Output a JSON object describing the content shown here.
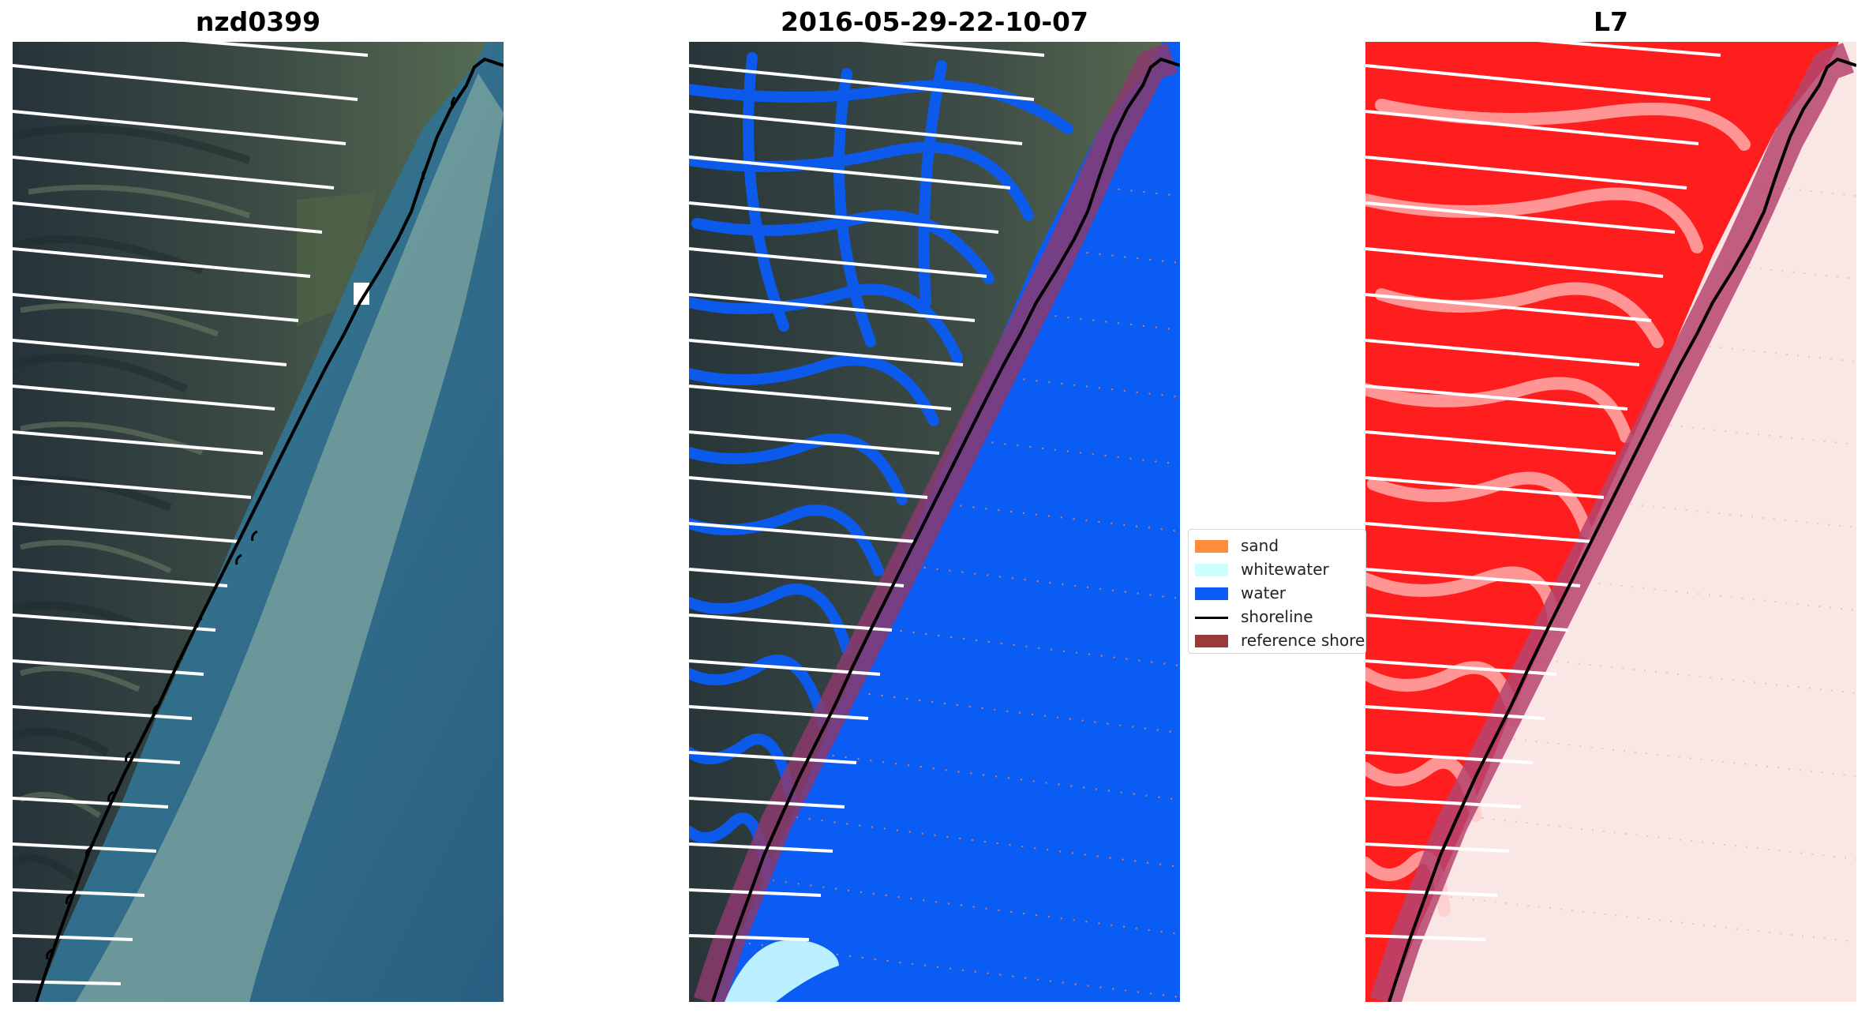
{
  "panels": [
    {
      "title": "nzd0399"
    },
    {
      "title": "2016-05-29-22-10-07"
    },
    {
      "title": "L7"
    }
  ],
  "legend": {
    "items": [
      {
        "label": "sand",
        "color": "#ff8c3a",
        "kind": "patch"
      },
      {
        "label": "whitewater",
        "color": "#ccffff",
        "kind": "patch"
      },
      {
        "label": "water",
        "color": "#0a5cf5",
        "kind": "patch"
      },
      {
        "label": "shoreline",
        "color": "#000000",
        "kind": "line"
      },
      {
        "label": "reference shore",
        "color": "#9b3a3a",
        "kind": "patch"
      }
    ]
  },
  "colors": {
    "land_dark": "#2b3a3c",
    "land_green": "#4d6346",
    "ocean": "#2f6a8c",
    "sediment_plume": "#7fa6a0",
    "water_class": "#0a5cf5",
    "reference_buffer": "#8b3a6e",
    "shoreline": "#000000",
    "scanline_gap": "#ffffff",
    "red_band_land": "#ff1e1e",
    "red_band_sea": "#fbe6e6"
  }
}
